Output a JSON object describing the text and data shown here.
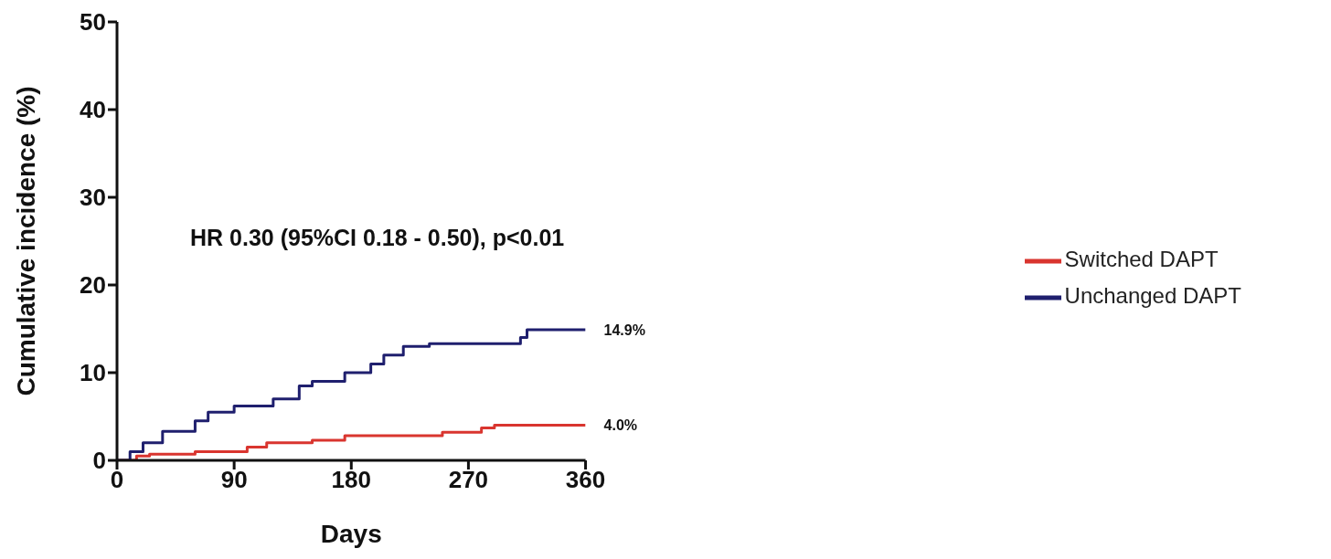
{
  "chart_data": {
    "type": "step",
    "xlabel": "Days",
    "ylabel": "Cumulative incidence (%)",
    "xlim": [
      0,
      360
    ],
    "xticks": [
      0,
      90,
      180,
      270,
      360
    ],
    "ylim": [
      0,
      50
    ],
    "yticks": [
      0,
      10,
      20,
      30,
      40,
      50
    ],
    "grid": false,
    "legend": "right",
    "marker": "none",
    "line_style": "solid",
    "series": [
      {
        "name": "Switched DAPT",
        "color": "#d9352f",
        "x": [
          0,
          15,
          25,
          60,
          100,
          115,
          150,
          175,
          250,
          280,
          290,
          360
        ],
        "values": [
          0,
          0.5,
          0.7,
          1.0,
          1.5,
          2.0,
          2.3,
          2.8,
          3.2,
          3.7,
          4.0,
          4.0
        ]
      },
      {
        "name": "Unchanged DAPT",
        "color": "#1f1f6e",
        "x": [
          0,
          10,
          20,
          35,
          60,
          70,
          90,
          120,
          140,
          150,
          175,
          195,
          205,
          220,
          240,
          310,
          315,
          360
        ],
        "values": [
          0,
          1.0,
          2.0,
          3.3,
          4.5,
          5.5,
          6.2,
          7.0,
          8.5,
          9.0,
          10.0,
          11.0,
          12.0,
          13.0,
          13.3,
          14.0,
          14.9,
          14.9
        ]
      }
    ],
    "annotations": [
      "HR 0.30 (95%CI 0.18 - 0.50), p<0.01",
      {
        "text": "14.9%",
        "x": 360,
        "y": 14.9
      },
      {
        "text": "4.0%",
        "x": 360,
        "y": 4.0
      }
    ]
  }
}
